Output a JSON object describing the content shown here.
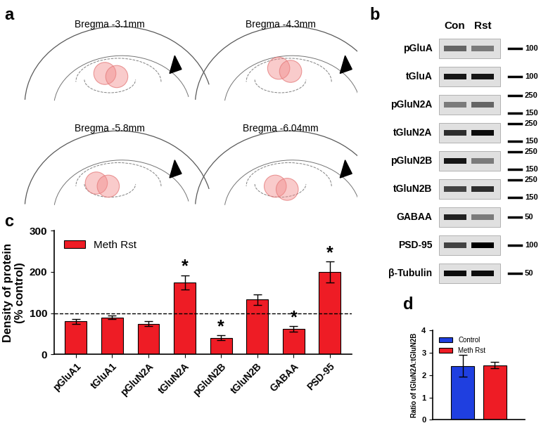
{
  "panel_labels": [
    "a",
    "b",
    "c",
    "d"
  ],
  "diagram": {
    "sections": [
      "Bregma -3.1mm",
      "Bregma -4.3mm",
      "Bregma -5.8mm",
      "Bregma -6.04mm"
    ]
  },
  "blot": {
    "columns": [
      "Con",
      "Rst"
    ],
    "rows": [
      {
        "label": "pGluA",
        "markers": [
          100
        ]
      },
      {
        "label": "tGluA",
        "markers": [
          100
        ]
      },
      {
        "label": "pGluN2A",
        "markers": [
          250,
          150
        ]
      },
      {
        "label": "tGluN2A",
        "markers": [
          250,
          150
        ]
      },
      {
        "label": "pGluN2B",
        "markers": [
          250,
          150
        ]
      },
      {
        "label": "tGluN2B",
        "markers": [
          250,
          150
        ]
      },
      {
        "label": "GABAA",
        "markers": [
          50
        ]
      },
      {
        "label": "PSD-95",
        "markers": [
          100
        ]
      },
      {
        "label": "β-Tubulin",
        "markers": [
          50
        ]
      }
    ]
  },
  "chart_data": [
    {
      "type": "bar",
      "categories": [
        "pGluA1",
        "tGluA1",
        "pGluN2A",
        "tGluN2A",
        "pGluN2B",
        "tGluN2B",
        "GABAA",
        "PSD-95"
      ],
      "series": [
        {
          "name": "Meth Rst",
          "color": "#ee1c25",
          "values": [
            80,
            90,
            74,
            175,
            40,
            133,
            62,
            200
          ],
          "errors": [
            6,
            4,
            6,
            17,
            6,
            13,
            7,
            25
          ],
          "significance": [
            null,
            null,
            null,
            "*",
            "*",
            null,
            "*",
            "*"
          ]
        }
      ],
      "ylabel": "Density of protein\n(% control)",
      "reference_line": 100,
      "ylim": [
        0,
        300
      ],
      "yticks": [
        0,
        100,
        200,
        300
      ],
      "legend": "upper left"
    },
    {
      "type": "bar",
      "categories": [
        null
      ],
      "series": [
        {
          "name": "Control",
          "color": "#1f3fe0",
          "values": [
            2.42
          ],
          "errors": [
            0.5
          ]
        },
        {
          "name": "Meth Rst",
          "color": "#ee1c25",
          "values": [
            2.45
          ],
          "errors": [
            0.15
          ]
        }
      ],
      "ylabel": "Ratio of tGluN2A:tGluN2B",
      "ylim": [
        0,
        4
      ],
      "yticks": [
        0,
        1,
        2,
        3,
        4
      ],
      "legend": "upper left"
    }
  ]
}
